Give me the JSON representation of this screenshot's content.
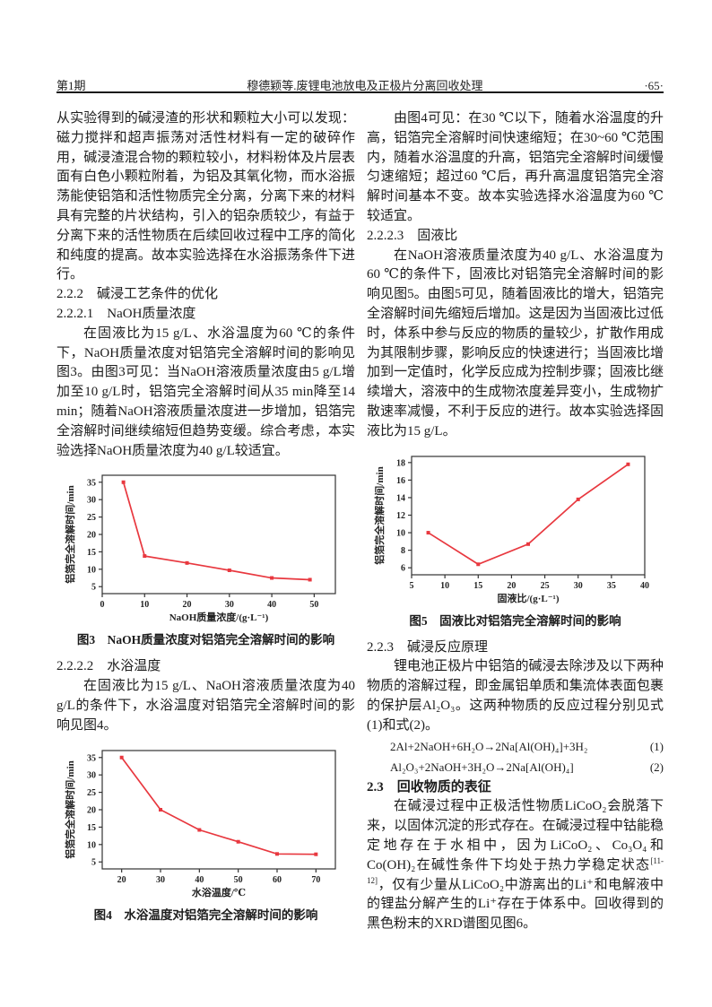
{
  "header": {
    "issue": "第1期",
    "title": "穆德颖等.废锂电池放电及正极片分离回收处理",
    "page": "·65·"
  },
  "left_column": {
    "para1": "从实验得到的碱浸渣的形状和颗粒大小可以发现：磁力搅拌和超声振荡对活性材料有一定的破碎作用，碱浸渣混合物的颗粒较小，材料粉体及片层表面有白色小颗粒附着，为铝及其氧化物，而水浴振荡能使铝箔和活性物质完全分离，分离下来的材料具有完整的片状结构，引入的铝杂质较少，有益于分离下来的活性物质在后续回收过程中工序的简化和纯度的提高。故本实验选择在水浴振荡条件下进行。",
    "heading_222": "2.2.2　碱浸工艺条件的优化",
    "heading_2221": "2.2.2.1　NaOH质量浓度",
    "para2": "在固液比为15 g/L、水浴温度为60 ℃的条件下，NaOH质量浓度对铝箔完全溶解时间的影响见图3。由图3可见：当NaOH溶液质量浓度由5 g/L增加至10 g/L时，铝箔完全溶解时间从35 min降至14 min；随着NaOH溶液质量浓度进一步增加，铝箔完全溶解时间继续缩短但趋势变缓。综合考虑，本实验选择NaOH质量浓度为40 g/L较适宜。",
    "heading_2222": "2.2.2.2　水浴温度",
    "para3": "在固液比为15 g/L、NaOH溶液质量浓度为40 g/L的条件下，水浴温度对铝箔完全溶解时间的影响见图4。"
  },
  "right_column": {
    "para1": "由图4可见：在30 ℃以下，随着水浴温度的升高，铝箔完全溶解时间快速缩短；在30~60 ℃范围内，随着水浴温度的升高，铝箔完全溶解时间缓慢匀速缩短；超过60 ℃后，再升高温度铝箔完全溶解时间基本不变。故本实验选择水浴温度为60 ℃较适宜。",
    "heading_2223": "2.2.2.3　固液比",
    "para2": "在NaOH溶液质量浓度为40 g/L、水浴温度为60 ℃的条件下，固液比对铝箔完全溶解时间的影响见图5。由图5可见，随着固液比的增大，铝箔完全溶解时间先缩短后增加。这是因为当固液比过低时，体系中参与反应的物质的量较少，扩散作用成为其限制步骤，影响反应的快速进行；当固液比增加到一定值时，化学反应成为控制步骤；固液比继续增大，溶液中的生成物浓度差异变小，生成物扩散速率减慢，不利于反应的进行。故本实验选择固液比为15 g/L。",
    "heading_223": "2.2.3　碱浸反应原理",
    "para3": "锂电池正极片中铝箔的碱浸去除涉及以下两种物质的溶解过程，即金属铝单质和集流体表面包裹的保护层Al₂O₃。这两种物质的反应过程分别见式(1)和式(2)。",
    "eq1": {
      "formula": "2Al+2NaOH+6H₂O→2Na[Al(OH)₄]+3H₂",
      "number": "(1)"
    },
    "eq2": {
      "formula": "Al₂O₃+2NaOH+3H₂O→2Na[Al(OH)₄]",
      "number": "(2)"
    },
    "heading_23": "2.3　回收物质的表征",
    "para4": {
      "before": "在碱浸过程中正极活性物质LiCoO₂会脱落下来，以固体沉淀的形式存在。在碱浸过程中钴能稳定地存在于水相中，因为LiCoO₂、Co₃O₄和Co(OH)₂在碱性条件下均处于热力学稳定状态",
      "sup": "[11-12]",
      "after": "，仅有少量从LiCoO₂中游离出的Li⁺和电解液中的锂盐分解产生的Li⁺存在于体系中。回收得到的黑色粉末的XRD谱图见图6。"
    }
  },
  "chart_data": [
    {
      "id": "fig3",
      "type": "line",
      "x": [
        5,
        10,
        20,
        30,
        40,
        49
      ],
      "y": [
        35,
        13.8,
        11.8,
        9.7,
        7.5,
        7
      ],
      "xlabel": "NaOH质量浓度/(g·L⁻¹)",
      "ylabel": "铝箔完全溶解时间/min",
      "xlim": [
        0,
        55
      ],
      "ylim": [
        3,
        37
      ],
      "xticks": [
        0,
        10,
        20,
        30,
        40,
        50
      ],
      "yticks": [
        5,
        10,
        15,
        20,
        25,
        30,
        35
      ],
      "line_color": "#e8383f",
      "grid": false,
      "legend": "none",
      "caption": "图3　NaOH质量浓度对铝箔完全溶解时间的影响"
    },
    {
      "id": "fig4",
      "type": "line",
      "x": [
        20,
        30,
        40,
        50,
        60,
        70
      ],
      "y": [
        35,
        20,
        14.2,
        10.8,
        7.3,
        7.2
      ],
      "xlabel": "水浴温度/℃",
      "ylabel": "铝箔完全溶解时间/min",
      "xlim": [
        15,
        75
      ],
      "ylim": [
        3,
        37
      ],
      "xticks": [
        20,
        30,
        40,
        50,
        60,
        70
      ],
      "yticks": [
        5,
        10,
        15,
        20,
        25,
        30,
        35
      ],
      "line_color": "#e8383f",
      "grid": false,
      "legend": "none",
      "caption": "图4　水浴温度对铝箔完全溶解时间的影响"
    },
    {
      "id": "fig5",
      "type": "line",
      "x": [
        7.5,
        15,
        22.5,
        30,
        37.5
      ],
      "y": [
        10,
        6.4,
        8.7,
        13.8,
        17.8
      ],
      "xlabel": "固液比/(g·L⁻¹)",
      "ylabel": "铝箔完全溶解时间/min",
      "xlim": [
        5,
        40
      ],
      "ylim": [
        5.2,
        18.7
      ],
      "xticks": [
        5,
        10,
        15,
        20,
        25,
        30,
        35,
        40
      ],
      "yticks": [
        6,
        8,
        10,
        12,
        14,
        16,
        18
      ],
      "line_color": "#e8383f",
      "grid": false,
      "legend": "none",
      "caption": "图5　固液比对铝箔完全溶解时间的影响"
    }
  ]
}
